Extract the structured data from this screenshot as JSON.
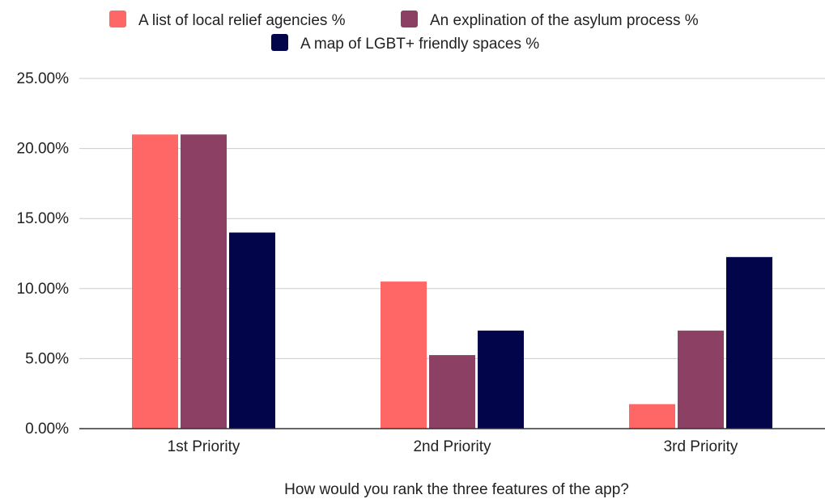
{
  "chart_data": {
    "type": "bar",
    "xlabel": "How would you rank the three features of the app?",
    "ylabel": "",
    "categories": [
      "1st Priority",
      "2nd Priority",
      "3rd Priority"
    ],
    "series": [
      {
        "name": "A list of local relief agencies %",
        "color": "#ff6666",
        "values": [
          0.21,
          0.105,
          0.0175
        ]
      },
      {
        "name": "An explination of the asylum process %",
        "color": "#8b4064",
        "values": [
          0.21,
          0.0525,
          0.07
        ]
      },
      {
        "name": "A map of LGBT+ friendly spaces %",
        "color": "#03054a",
        "values": [
          0.14,
          0.07,
          0.1225
        ]
      }
    ],
    "ylim": [
      0,
      0.25
    ],
    "yticks": [
      "0.00%",
      "5.00%",
      "10.00%",
      "15.00%",
      "20.00%",
      "25.00%"
    ],
    "grid": true,
    "legend": "top"
  }
}
